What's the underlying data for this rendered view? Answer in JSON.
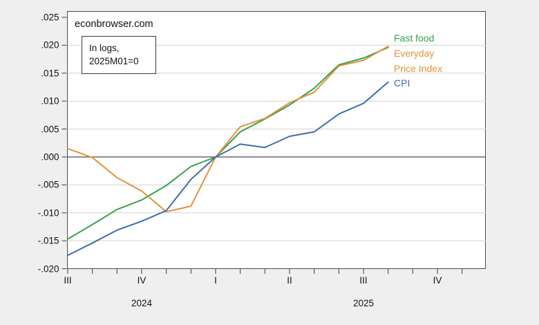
{
  "site_label": "econbrowser.com",
  "annotation": {
    "line1": "In logs,",
    "line2": "2025M01=0"
  },
  "series_labels": {
    "fast_food": "Fast food",
    "everyday_line1": "Everyday",
    "everyday_line2": "Price Index",
    "cpi": "CPI"
  },
  "colors": {
    "background": "#efefef",
    "plot_bg": "#ffffff",
    "plot_border": "#4a4a4a",
    "grid": "#d2d2d2",
    "zero_line": "#4a4a4a",
    "tick": "#3a3a3a",
    "text": "#111111",
    "fast_food": "#38a04e",
    "epi": "#e2913e",
    "cpi": "#3f6cad"
  },
  "y_axis": {
    "tick_labels": [
      ".025",
      ".020",
      ".015",
      ".010",
      ".005",
      ".000",
      "-.005",
      "-.010",
      "-.015",
      "-.020"
    ],
    "tick_values": [
      0.025,
      0.02,
      0.015,
      0.01,
      0.005,
      0.0,
      -0.005,
      -0.01,
      -0.015,
      -0.02
    ],
    "grid_values": [
      0.02,
      0.015,
      0.01,
      0.005,
      -0.005,
      -0.01,
      -0.015
    ]
  },
  "x_axis": {
    "quarter_ticks": [
      {
        "label": "III",
        "month_index": 0
      },
      {
        "label": "IV",
        "month_index": 3
      },
      {
        "label": "I",
        "month_index": 6
      },
      {
        "label": "II",
        "month_index": 9
      },
      {
        "label": "III",
        "month_index": 12
      },
      {
        "label": "IV",
        "month_index": 15
      }
    ],
    "year_labels": [
      {
        "label": "2024",
        "month_index": 3
      },
      {
        "label": "2025",
        "month_index": 12
      }
    ],
    "total_month_ticks": 17
  },
  "chart_data": {
    "type": "line",
    "title": "econbrowser.com",
    "note": "In logs, 2025M01=0",
    "x": [
      "2024M07",
      "2024M08",
      "2024M09",
      "2024M10",
      "2024M11",
      "2024M12",
      "2025M01",
      "2025M02",
      "2025M03",
      "2025M04",
      "2025M05",
      "2025M06",
      "2025M07",
      "2025M08"
    ],
    "series": [
      {
        "name": "Fast food",
        "color_key": "fast_food",
        "values": [
          -0.0147,
          -0.0121,
          -0.0094,
          -0.0077,
          -0.0051,
          -0.0017,
          0.0,
          0.0045,
          0.0068,
          0.0093,
          0.0123,
          0.0165,
          0.0177,
          0.0196
        ]
      },
      {
        "name": "Everyday Price Index",
        "color_key": "epi",
        "values": [
          0.0015,
          -0.0001,
          -0.0037,
          -0.0061,
          -0.0098,
          -0.0088,
          0.0,
          0.0054,
          0.0069,
          0.0097,
          0.0116,
          0.0163,
          0.0173,
          0.0198
        ]
      },
      {
        "name": "CPI",
        "color_key": "cpi",
        "values": [
          -0.0176,
          -0.0154,
          -0.0131,
          -0.0115,
          -0.0096,
          -0.004,
          0.0,
          0.0023,
          0.0017,
          0.0037,
          0.0045,
          0.0077,
          0.0096,
          0.0134
        ]
      }
    ],
    "ylim": [
      -0.02,
      0.025
    ],
    "xlabel": "",
    "ylabel": "",
    "grid": true,
    "legend_position": "inline-right"
  }
}
